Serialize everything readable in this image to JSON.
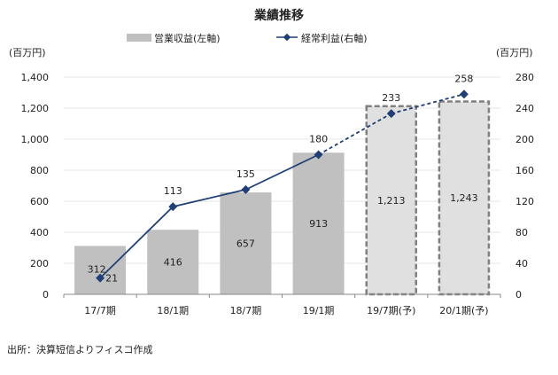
{
  "chart_data": {
    "type": "bar+line",
    "title": "業績推移",
    "categories": [
      "17/7期",
      "18/1期",
      "18/7期",
      "19/1期",
      "19/7期(予)",
      "20/1期(予)"
    ],
    "series": [
      {
        "name": "営業収益(左軸)",
        "type": "bar",
        "axis": "left",
        "values": [
          312,
          416,
          657,
          913,
          1213,
          1243
        ],
        "data_labels": [
          "312",
          "416",
          "657",
          "913",
          "1,213",
          "1,243"
        ],
        "forecast": [
          false,
          false,
          false,
          false,
          true,
          true
        ],
        "color": "#c0c0c0",
        "forecast_color": "#e0e0e0"
      },
      {
        "name": "経常利益(右軸)",
        "type": "line",
        "axis": "right",
        "values": [
          21,
          113,
          135,
          180,
          233,
          258
        ],
        "data_labels": [
          "21",
          "113",
          "135",
          "180",
          "233",
          "258"
        ],
        "forecast": [
          false,
          false,
          false,
          false,
          true,
          true
        ],
        "color": "#1f3f75"
      }
    ],
    "left_axis": {
      "label": "(百万円)",
      "ylim": [
        0,
        1400
      ],
      "ticks": [
        "0",
        "200",
        "400",
        "600",
        "800",
        "1,000",
        "1,200",
        "1,400"
      ]
    },
    "right_axis": {
      "label": "(百万円)",
      "ylim": [
        0,
        280
      ],
      "ticks": [
        "0",
        "40",
        "80",
        "120",
        "160",
        "200",
        "240",
        "280"
      ]
    },
    "grid": true,
    "legend": "top"
  },
  "source": "出所：決算短信よりフィスコ作成"
}
